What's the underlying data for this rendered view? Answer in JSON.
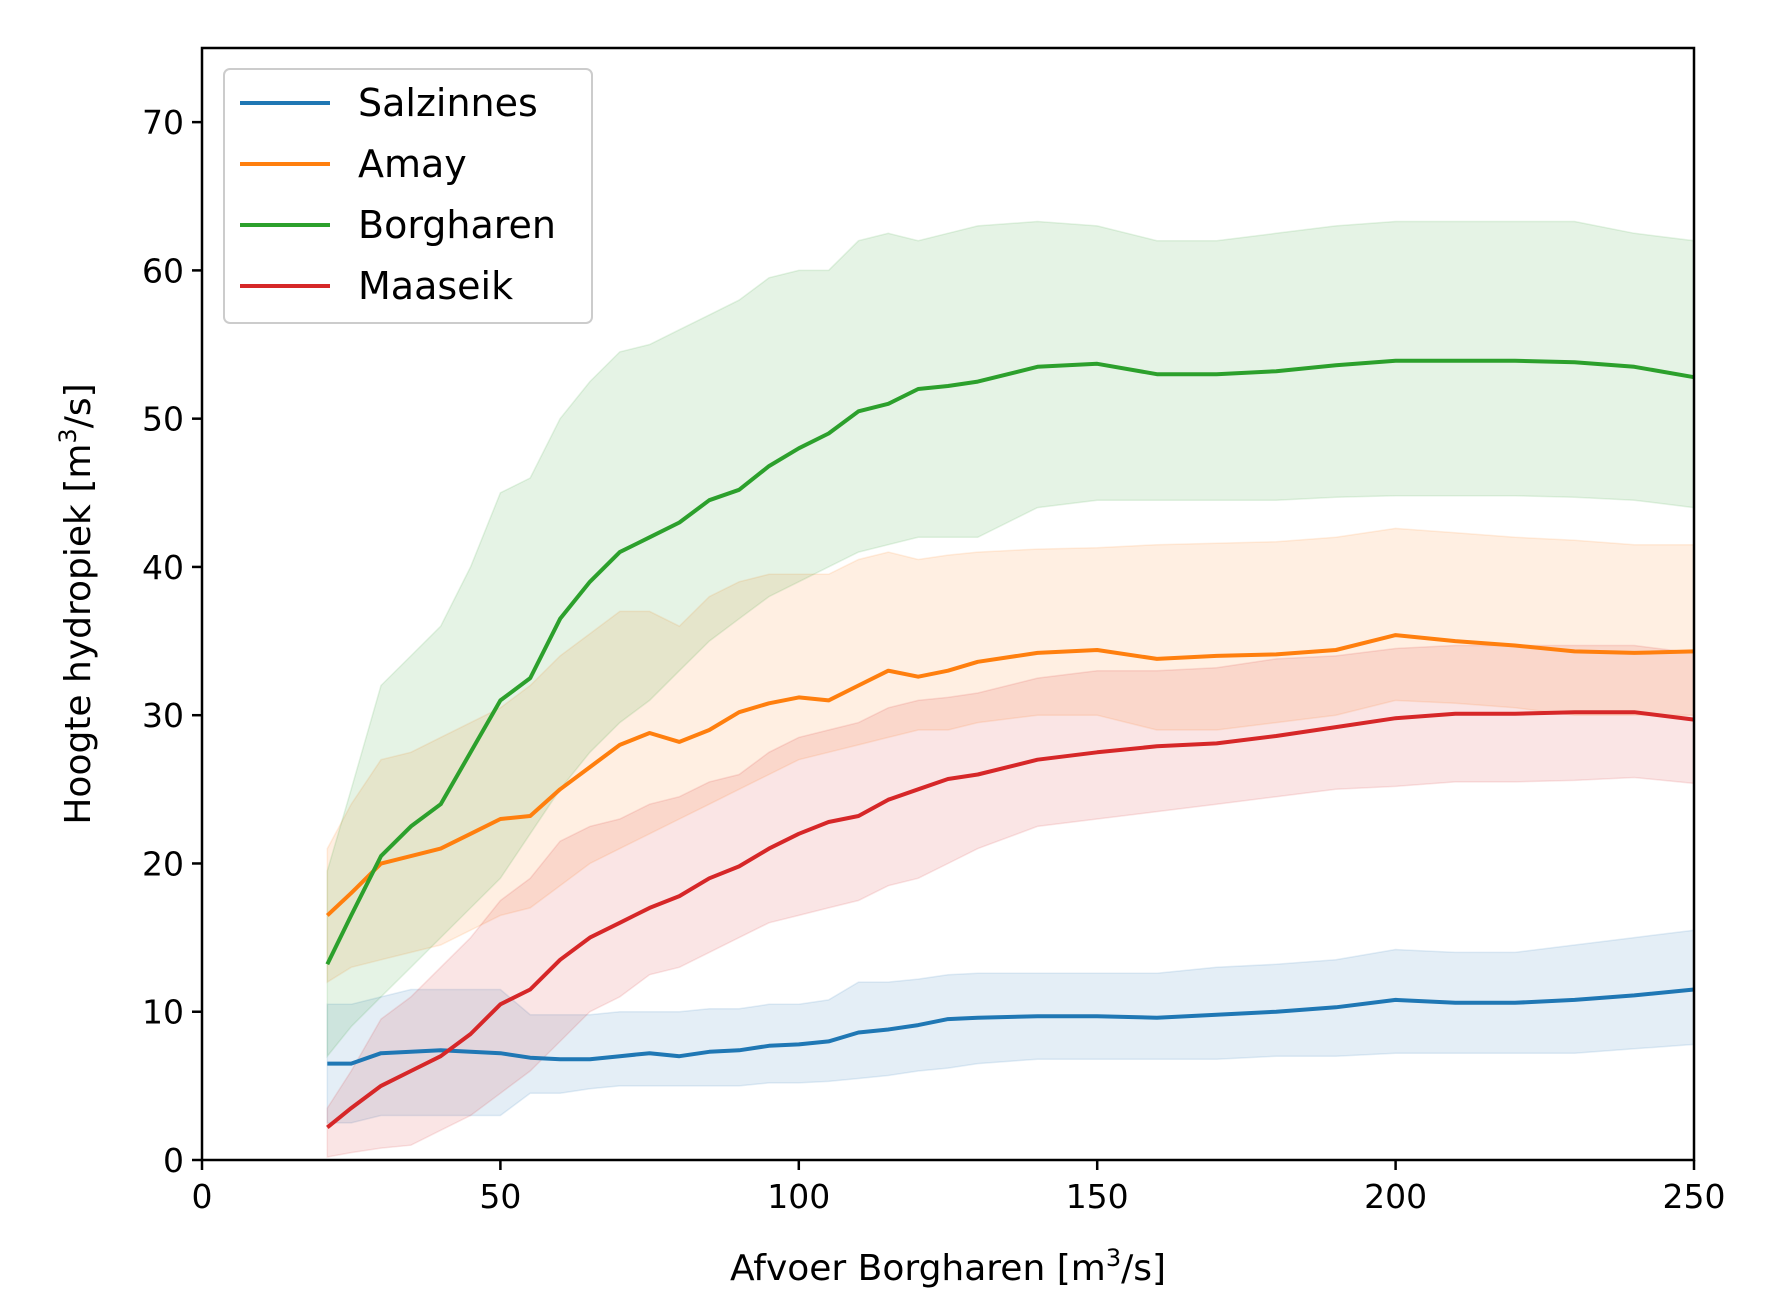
{
  "chart_data": {
    "type": "line",
    "title": "",
    "xlabel": "Afvoer Borgharen [m³/s]",
    "xlabel_main": "Afvoer Borgharen [m",
    "xlabel_sup": "3",
    "xlabel_tail": "/s]",
    "ylabel": "Hoogte hydropiek [m³/s]",
    "ylabel_main": "Hoogte hydropiek [m",
    "ylabel_sup": "3",
    "ylabel_tail": "/s]",
    "xlim": [
      0,
      250
    ],
    "ylim": [
      0,
      75
    ],
    "xticks": [
      0,
      50,
      100,
      150,
      200,
      250
    ],
    "yticks": [
      0,
      10,
      20,
      30,
      40,
      50,
      60,
      70
    ],
    "grid": false,
    "legend_position": "top-left",
    "x": [
      21,
      25,
      30,
      35,
      40,
      45,
      50,
      55,
      60,
      65,
      70,
      75,
      80,
      85,
      90,
      95,
      100,
      105,
      110,
      115,
      120,
      125,
      130,
      140,
      150,
      160,
      170,
      180,
      190,
      200,
      210,
      220,
      230,
      240,
      250
    ],
    "series": [
      {
        "name": "Salzinnes",
        "color": "#1f77b4",
        "values": [
          6.5,
          6.5,
          7.2,
          7.3,
          7.4,
          7.3,
          7.2,
          6.9,
          6.8,
          6.8,
          7.0,
          7.2,
          7.0,
          7.3,
          7.4,
          7.7,
          7.8,
          8.0,
          8.6,
          8.8,
          9.1,
          9.5,
          9.6,
          9.7,
          9.7,
          9.6,
          9.8,
          10.0,
          10.3,
          10.8,
          10.6,
          10.6,
          10.8,
          11.1,
          11.5
        ],
        "lower": [
          2.5,
          2.5,
          3.0,
          3.0,
          3.0,
          3.0,
          3.0,
          4.5,
          4.5,
          4.8,
          5.0,
          5.0,
          5.0,
          5.0,
          5.0,
          5.2,
          5.2,
          5.3,
          5.5,
          5.7,
          6.0,
          6.2,
          6.5,
          6.8,
          6.8,
          6.8,
          6.8,
          7.0,
          7.0,
          7.2,
          7.2,
          7.2,
          7.2,
          7.5,
          7.8
        ],
        "upper": [
          10.5,
          10.5,
          11.0,
          11.5,
          11.5,
          11.5,
          11.5,
          9.8,
          9.8,
          9.8,
          10.0,
          10.0,
          10.0,
          10.2,
          10.2,
          10.5,
          10.5,
          10.8,
          12.0,
          12.0,
          12.2,
          12.5,
          12.6,
          12.6,
          12.6,
          12.6,
          13.0,
          13.2,
          13.5,
          14.2,
          14.0,
          14.0,
          14.5,
          15.0,
          15.5
        ]
      },
      {
        "name": "Amay",
        "color": "#ff7f0e",
        "values": [
          16.5,
          18.0,
          20.0,
          20.5,
          21.0,
          22.0,
          23.0,
          23.2,
          25.0,
          26.5,
          28.0,
          28.8,
          28.2,
          29.0,
          30.2,
          30.8,
          31.2,
          31.0,
          32.0,
          33.0,
          32.6,
          33.0,
          33.6,
          34.2,
          34.4,
          33.8,
          34.0,
          34.1,
          34.4,
          35.4,
          35.0,
          34.7,
          34.3,
          34.2,
          34.3
        ],
        "lower": [
          12.0,
          13.0,
          13.5,
          14.0,
          14.5,
          15.5,
          16.5,
          17.0,
          18.5,
          20.0,
          21.0,
          22.0,
          23.0,
          24.0,
          25.0,
          26.0,
          27.0,
          27.5,
          28.0,
          28.5,
          29.0,
          29.0,
          29.5,
          30.0,
          30.0,
          29.0,
          29.0,
          29.5,
          30.0,
          31.0,
          30.8,
          30.5,
          30.0,
          30.0,
          30.0
        ],
        "upper": [
          21.0,
          24.0,
          27.0,
          27.5,
          28.5,
          29.5,
          30.5,
          32.0,
          34.0,
          35.5,
          37.0,
          37.0,
          36.0,
          38.0,
          39.0,
          39.5,
          39.5,
          39.5,
          40.5,
          41.0,
          40.5,
          40.8,
          41.0,
          41.2,
          41.3,
          41.5,
          41.6,
          41.7,
          42.0,
          42.6,
          42.3,
          42.0,
          41.8,
          41.5,
          41.5
        ]
      },
      {
        "name": "Borgharen",
        "color": "#2ca02c",
        "values": [
          13.2,
          16.5,
          20.5,
          22.5,
          24.0,
          27.5,
          31.0,
          32.5,
          36.5,
          39.0,
          41.0,
          42.0,
          43.0,
          44.5,
          45.2,
          46.8,
          48.0,
          49.0,
          50.5,
          51.0,
          52.0,
          52.2,
          52.5,
          53.5,
          53.7,
          53.0,
          53.0,
          53.2,
          53.6,
          53.9,
          53.9,
          53.9,
          53.8,
          53.5,
          52.8
        ],
        "lower": [
          7.0,
          9.0,
          11.0,
          13.0,
          15.0,
          17.0,
          19.0,
          22.0,
          25.0,
          27.5,
          29.5,
          31.0,
          33.0,
          35.0,
          36.5,
          38.0,
          39.0,
          40.0,
          41.0,
          41.5,
          42.0,
          42.0,
          42.0,
          44.0,
          44.5,
          44.5,
          44.5,
          44.5,
          44.7,
          44.8,
          44.8,
          44.8,
          44.7,
          44.5,
          44.0
        ],
        "upper": [
          19.5,
          25.0,
          32.0,
          34.0,
          36.0,
          40.0,
          45.0,
          46.0,
          50.0,
          52.5,
          54.5,
          55.0,
          56.0,
          57.0,
          58.0,
          59.5,
          60.0,
          60.0,
          62.0,
          62.5,
          62.0,
          62.5,
          63.0,
          63.3,
          63.0,
          62.0,
          62.0,
          62.5,
          63.0,
          63.3,
          63.3,
          63.3,
          63.3,
          62.5,
          62.0
        ]
      },
      {
        "name": "Maaseik",
        "color": "#d62728",
        "values": [
          2.2,
          3.5,
          5.0,
          6.0,
          7.0,
          8.5,
          10.5,
          11.5,
          13.5,
          15.0,
          16.0,
          17.0,
          17.8,
          19.0,
          19.8,
          21.0,
          22.0,
          22.8,
          23.2,
          24.3,
          25.0,
          25.7,
          26.0,
          27.0,
          27.5,
          27.9,
          28.1,
          28.6,
          29.2,
          29.8,
          30.1,
          30.1,
          30.2,
          30.2,
          29.7
        ],
        "lower": [
          0.2,
          0.5,
          0.8,
          1.0,
          2.0,
          3.0,
          4.5,
          6.0,
          8.0,
          10.0,
          11.0,
          12.5,
          13.0,
          14.0,
          15.0,
          16.0,
          16.5,
          17.0,
          17.5,
          18.5,
          19.0,
          20.0,
          21.0,
          22.5,
          23.0,
          23.5,
          24.0,
          24.5,
          25.0,
          25.2,
          25.5,
          25.5,
          25.6,
          25.8,
          25.4
        ],
        "upper": [
          3.5,
          6.0,
          9.5,
          11.0,
          13.0,
          15.0,
          17.5,
          19.0,
          21.5,
          22.5,
          23.0,
          24.0,
          24.5,
          25.5,
          26.0,
          27.5,
          28.5,
          29.0,
          29.5,
          30.5,
          31.0,
          31.2,
          31.5,
          32.5,
          33.0,
          33.0,
          33.2,
          33.8,
          34.0,
          34.5,
          34.7,
          34.7,
          34.7,
          34.7,
          34.2
        ]
      }
    ]
  }
}
